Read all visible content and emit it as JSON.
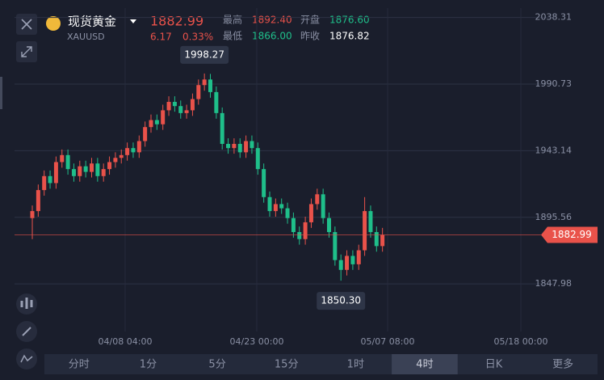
{
  "header": {
    "title": "现货黄金",
    "symbol": "XAUUSD",
    "price": "1882.99",
    "change": "6.17",
    "change_pct": "0.33%",
    "stats": [
      {
        "label": "最高",
        "value": "1892.40"
      },
      {
        "label": "开盘",
        "value": "1876.60"
      },
      {
        "label": "最低",
        "value": "1866.00"
      },
      {
        "label": "昨收",
        "value": "1876.82"
      }
    ]
  },
  "chart_data": {
    "type": "candlestick",
    "up_color": "#e9524a",
    "down_color": "#1fbf8a",
    "open": [
      1895,
      1900,
      1915,
      1925,
      1920,
      1935,
      1940,
      1930,
      1925,
      1932,
      1928,
      1934,
      1925,
      1930,
      1935,
      1938,
      1940,
      1945,
      1942,
      1950,
      1960,
      1965,
      1962,
      1972,
      1978,
      1975,
      1970,
      1972,
      1980,
      1990,
      1994,
      1985,
      1970,
      1948,
      1945,
      1948,
      1942,
      1950,
      1945,
      1930,
      1910,
      1900,
      1905,
      1902,
      1895,
      1885,
      1880,
      1892,
      1905,
      1912,
      1895,
      1885,
      1865,
      1858,
      1868,
      1862,
      1872,
      1900,
      1885,
      1875
    ],
    "high": [
      1904,
      1919,
      1929,
      1929,
      1939,
      1944,
      1944,
      1934,
      1936,
      1936,
      1938,
      1938,
      1934,
      1939,
      1942,
      1944,
      1949,
      1949,
      1954,
      1964,
      1969,
      1969,
      1976,
      1982,
      1982,
      1979,
      1976,
      1984,
      1994,
      1998.27,
      1998,
      1989,
      1974,
      1952,
      1952,
      1952,
      1954,
      1954,
      1949,
      1934,
      1914,
      1909,
      1909,
      1906,
      1899,
      1889,
      1896,
      1909,
      1916,
      1916,
      1899,
      1889,
      1869,
      1872,
      1872,
      1876,
      1910,
      1904,
      1889,
      1888
    ],
    "low": [
      1880,
      1896,
      1911,
      1916,
      1916,
      1931,
      1926,
      1921,
      1921,
      1924,
      1924,
      1921,
      1921,
      1926,
      1931,
      1934,
      1936,
      1938,
      1938,
      1946,
      1956,
      1958,
      1958,
      1968,
      1971,
      1966,
      1966,
      1968,
      1976,
      1986,
      1981,
      1966,
      1944,
      1941,
      1941,
      1938,
      1938,
      1941,
      1926,
      1906,
      1896,
      1896,
      1898,
      1891,
      1881,
      1876,
      1876,
      1888,
      1901,
      1891,
      1881,
      1861,
      1850.3,
      1854,
      1858,
      1858,
      1868,
      1881,
      1871,
      1871
    ],
    "close": [
      1900,
      1915,
      1925,
      1920,
      1935,
      1940,
      1930,
      1925,
      1932,
      1928,
      1934,
      1925,
      1930,
      1935,
      1938,
      1940,
      1945,
      1942,
      1950,
      1960,
      1965,
      1962,
      1972,
      1978,
      1975,
      1970,
      1972,
      1980,
      1990,
      1994,
      1985,
      1970,
      1948,
      1945,
      1948,
      1942,
      1950,
      1945,
      1930,
      1910,
      1900,
      1905,
      1902,
      1895,
      1885,
      1880,
      1892,
      1905,
      1912,
      1895,
      1885,
      1865,
      1858,
      1868,
      1862,
      1872,
      1900,
      1885,
      1875,
      1883
    ],
    "ylim": [
      1814,
      2045
    ],
    "yticks": [
      2038.31,
      1990.73,
      1943.14,
      1895.56,
      1847.98
    ],
    "grid": true,
    "x_labels": [
      "04/08 04:00",
      "04/23 00:00",
      "05/07 08:00",
      "05/18 00:00"
    ],
    "max_label": "1998.27",
    "min_label": "1850.30",
    "current_price": 1882.99
  },
  "tabs": [
    "分时",
    "1分",
    "5分",
    "15分",
    "1时",
    "4时",
    "日K",
    "更多"
  ],
  "active_tab": 5
}
